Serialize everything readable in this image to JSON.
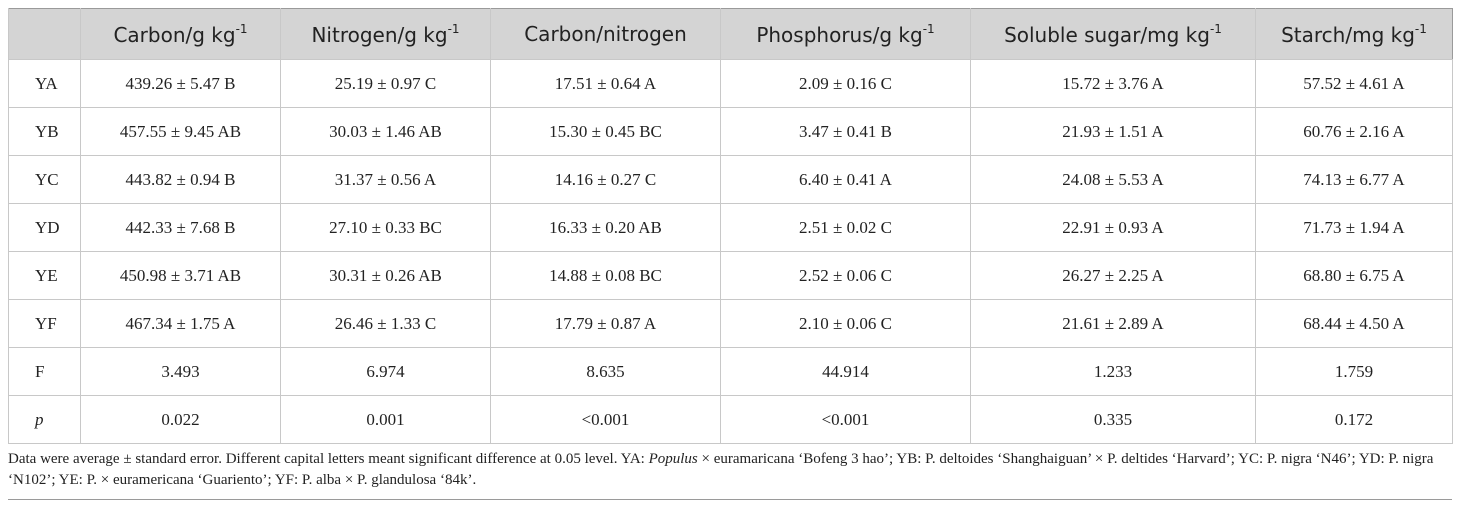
{
  "table": {
    "header": [
      {
        "text": "Carbon/g kg",
        "sup": "-1"
      },
      {
        "text": "Nitrogen/g kg",
        "sup": "-1"
      },
      {
        "text": "Carbon/nitrogen"
      },
      {
        "text": "Phosphorus/g kg",
        "sup": "-1"
      },
      {
        "text": "Soluble sugar/mg kg",
        "sup": "-1"
      },
      {
        "text": "Starch/mg kg",
        "sup": "-1"
      }
    ],
    "rows": [
      [
        {
          "text": "YA"
        },
        "439.26 ± 5.47 B",
        "25.19 ± 0.97 C",
        "17.51 ± 0.64 A",
        "2.09 ± 0.16 C",
        "15.72 ± 3.76 A",
        "57.52 ± 4.61 A"
      ],
      [
        {
          "text": "YB"
        },
        "457.55 ± 9.45 AB",
        "30.03 ± 1.46 AB",
        "15.30 ± 0.45 BC",
        "3.47 ± 0.41 B",
        "21.93 ± 1.51 A",
        "60.76 ± 2.16 A"
      ],
      [
        {
          "text": "YC"
        },
        "443.82 ± 0.94 B",
        "31.37 ± 0.56 A",
        "14.16 ± 0.27 C",
        "6.40 ± 0.41 A",
        "24.08 ± 5.53 A",
        "74.13 ± 6.77 A"
      ],
      [
        {
          "text": "YD"
        },
        "442.33 ± 7.68 B",
        "27.10 ± 0.33 BC",
        "16.33 ± 0.20 AB",
        "2.51 ± 0.02 C",
        "22.91 ± 0.93 A",
        "71.73 ± 1.94 A"
      ],
      [
        {
          "text": "YE"
        },
        "450.98 ± 3.71 AB",
        "30.31 ± 0.26 AB",
        "14.88 ± 0.08 BC",
        "2.52 ± 0.06 C",
        "26.27 ± 2.25 A",
        "68.80 ± 6.75 A"
      ],
      [
        {
          "text": "YF"
        },
        "467.34 ± 1.75 A",
        "26.46 ± 1.33 C",
        "17.79 ± 0.87 A",
        "2.10 ± 0.06 C",
        "21.61 ± 2.89 A",
        "68.44 ± 4.50 A"
      ],
      [
        {
          "text": "F"
        },
        "3.493",
        "6.974",
        "8.635",
        "44.914",
        "1.233",
        "1.759"
      ],
      [
        {
          "text": "p",
          "italic": true
        },
        "0.022",
        "0.001",
        "<0.001",
        "<0.001",
        "0.335",
        "0.172"
      ]
    ]
  },
  "footnote": [
    {
      "text": "Data were average ± standard error. Different capital letters meant significant difference at 0.05 level. YA: "
    },
    {
      "text": "Populus",
      "italic": true
    },
    {
      "text": " × euramaricana ‘Bofeng 3 hao’; YB: P. deltoides ‘Shanghaiguan’ × P. deltides ‘Harvard’; YC: P. nigra ‘N46’; YD: P. nigra ‘N102’; YE: P. × euramericana ‘Guariento’; YF: P. alba × P. glandulosa ‘84k’."
    }
  ]
}
